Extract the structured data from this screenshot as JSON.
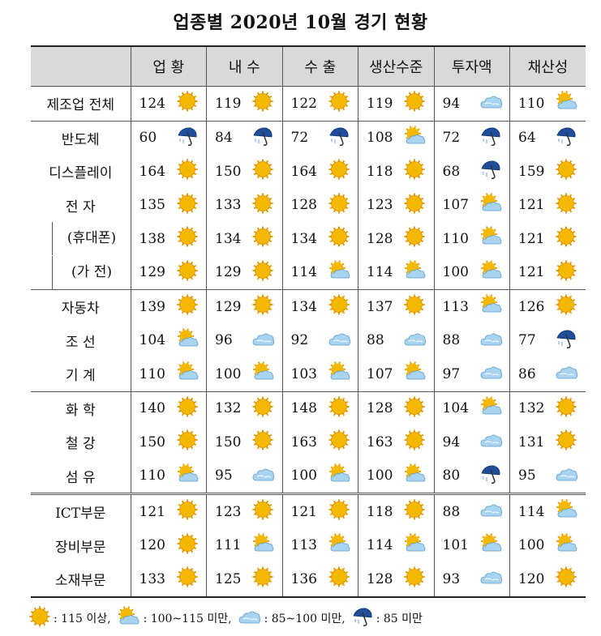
{
  "title": "업종별 2020년 10월 경기 현황",
  "headers": [
    "",
    "업 황",
    "내 수",
    "수 출",
    "생산수준",
    "투자액",
    "채산성"
  ],
  "rows": [
    {
      "label": "제조업 전체",
      "sub": false,
      "values": [
        124,
        119,
        122,
        119,
        94,
        110
      ],
      "icons": [
        "sun",
        "sun",
        "sun",
        "sun",
        "cloud",
        "partly"
      ]
    },
    {
      "label": "반도체",
      "sub": false,
      "values": [
        60,
        84,
        72,
        108,
        72,
        64
      ],
      "icons": [
        "umbrella",
        "umbrella",
        "umbrella",
        "partly",
        "umbrella",
        "umbrella"
      ]
    },
    {
      "label": "디스플레이",
      "sub": false,
      "values": [
        164,
        150,
        164,
        118,
        68,
        159
      ],
      "icons": [
        "sun",
        "sun",
        "sun",
        "sun",
        "umbrella",
        "sun"
      ]
    },
    {
      "label": "전 자",
      "sub": false,
      "values": [
        135,
        133,
        128,
        123,
        107,
        121
      ],
      "icons": [
        "sun",
        "sun",
        "sun",
        "sun",
        "partly",
        "sun"
      ]
    },
    {
      "label": "(휴대폰)",
      "sub": true,
      "values": [
        138,
        134,
        134,
        128,
        110,
        121
      ],
      "icons": [
        "sun",
        "sun",
        "sun",
        "sun",
        "partly",
        "sun"
      ]
    },
    {
      "label": "(가 전)",
      "sub": true,
      "values": [
        129,
        129,
        114,
        114,
        100,
        121
      ],
      "icons": [
        "sun",
        "sun",
        "partly",
        "partly",
        "partly",
        "sun"
      ]
    },
    {
      "label": "자동차",
      "sub": false,
      "values": [
        139,
        129,
        134,
        137,
        113,
        126
      ],
      "icons": [
        "sun",
        "sun",
        "sun",
        "sun",
        "partly",
        "sun"
      ]
    },
    {
      "label": "조 선",
      "sub": false,
      "values": [
        104,
        96,
        92,
        88,
        88,
        77
      ],
      "icons": [
        "partly",
        "cloud",
        "cloud",
        "cloud",
        "cloud",
        "umbrella"
      ]
    },
    {
      "label": "기 계",
      "sub": false,
      "values": [
        110,
        100,
        103,
        107,
        97,
        86
      ],
      "icons": [
        "partly",
        "partly",
        "partly",
        "partly",
        "cloud",
        "cloud"
      ]
    },
    {
      "label": "화 학",
      "sub": false,
      "values": [
        140,
        132,
        148,
        128,
        104,
        132
      ],
      "icons": [
        "sun",
        "sun",
        "sun",
        "sun",
        "partly",
        "sun"
      ]
    },
    {
      "label": "철 강",
      "sub": false,
      "values": [
        150,
        150,
        163,
        163,
        94,
        131
      ],
      "icons": [
        "sun",
        "sun",
        "sun",
        "sun",
        "cloud",
        "sun"
      ]
    },
    {
      "label": "섬 유",
      "sub": false,
      "values": [
        110,
        95,
        100,
        100,
        80,
        95
      ],
      "icons": [
        "partly",
        "cloud",
        "partly",
        "partly",
        "umbrella",
        "cloud"
      ]
    },
    {
      "label": "ICT부문",
      "sub": false,
      "values": [
        121,
        123,
        121,
        118,
        88,
        114
      ],
      "icons": [
        "sun",
        "sun",
        "sun",
        "sun",
        "cloud",
        "partly"
      ]
    },
    {
      "label": "장비부문",
      "sub": false,
      "values": [
        120,
        111,
        113,
        114,
        101,
        100
      ],
      "icons": [
        "sun",
        "partly",
        "partly",
        "partly",
        "partly",
        "partly"
      ]
    },
    {
      "label": "소재부문",
      "sub": false,
      "values": [
        133,
        125,
        136,
        128,
        93,
        120
      ],
      "icons": [
        "sun",
        "sun",
        "sun",
        "sun",
        "cloud",
        "sun"
      ]
    }
  ],
  "legend": [
    {
      "icon": "sun",
      "text": ": 115 이상,"
    },
    {
      "icon": "partly",
      "text": ": 100~115 미만,"
    },
    {
      "icon": "cloud",
      "text": ": 85~100 미만,"
    },
    {
      "icon": "umbrella",
      "text": ": 85 미만"
    }
  ],
  "colors": {
    "sun": "#f5b800",
    "cloud": "#a9d4f0",
    "umbrella": "#1f4e9c",
    "header_bg": "#d9d9d9"
  }
}
